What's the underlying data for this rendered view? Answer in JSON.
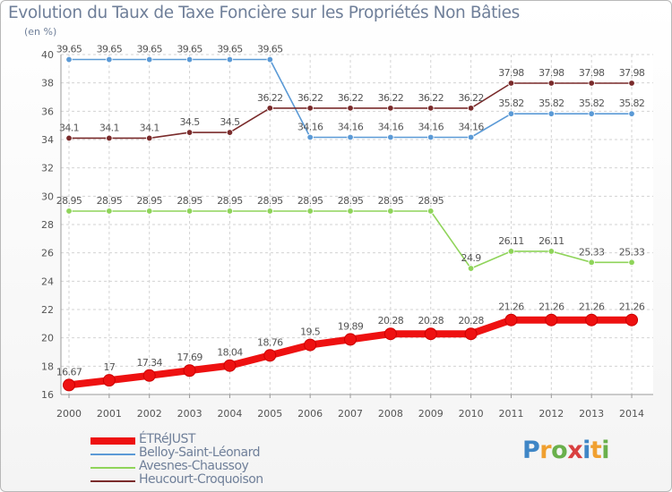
{
  "header": {
    "title": "Evolution du Taux de Taxe Foncière sur les Propriétés Non Bâties",
    "unit": "(en %)"
  },
  "brand": {
    "letters": [
      "P",
      "r",
      "o",
      "x",
      "i",
      "t",
      "i"
    ],
    "colors": [
      "#3f86c6",
      "#f0a030",
      "#6ab04c",
      "#d94040",
      "#3f86c6",
      "#f0a030",
      "#6ab04c"
    ]
  },
  "chart_data": {
    "type": "line",
    "title": "Evolution du Taux de Taxe Foncière sur les Propriétés Non Bâties",
    "ylabel": "(en %)",
    "xlabel": "",
    "x": [
      "2000",
      "2001",
      "2002",
      "2003",
      "2004",
      "2005",
      "2006",
      "2007",
      "2008",
      "2009",
      "2010",
      "2011",
      "2012",
      "2013",
      "2014"
    ],
    "ylim": [
      16,
      40
    ],
    "yticks": [
      "16",
      "18",
      "20",
      "22",
      "24",
      "26",
      "28",
      "30",
      "32",
      "34",
      "36",
      "38",
      "40"
    ],
    "grid": true,
    "legend_position": "bottom-left",
    "series": [
      {
        "name": "ÉTRéJUST",
        "color": "#ee1111",
        "bold": true,
        "values": [
          16.67,
          17,
          17.34,
          17.69,
          18.04,
          18.76,
          19.5,
          19.89,
          20.28,
          20.28,
          20.28,
          21.26,
          21.26,
          21.26,
          21.26
        ],
        "labels": [
          "16.67",
          "17",
          "17.34",
          "17.69",
          "18.04",
          "18.76",
          "19.5",
          "19.89",
          "20.28",
          "20.28",
          "20.28",
          "21.26",
          "21.26",
          "21.26",
          "21.26"
        ]
      },
      {
        "name": "Belloy-Saint-Léonard",
        "color": "#5b9ad6",
        "bold": false,
        "values": [
          39.65,
          39.65,
          39.65,
          39.65,
          39.65,
          39.65,
          34.16,
          34.16,
          34.16,
          34.16,
          34.16,
          35.82,
          35.82,
          35.82,
          35.82
        ],
        "labels": [
          "39.65",
          "39.65",
          "39.65",
          "39.65",
          "39.65",
          "39.65",
          "34.16",
          "34.16",
          "34.16",
          "34.16",
          "34.16",
          "35.82",
          "35.82",
          "35.82",
          "35.82"
        ]
      },
      {
        "name": "Avesnes-Chaussoy",
        "color": "#8fd45a",
        "bold": false,
        "values": [
          28.95,
          28.95,
          28.95,
          28.95,
          28.95,
          28.95,
          28.95,
          28.95,
          28.95,
          28.95,
          24.9,
          26.11,
          26.11,
          25.33,
          25.33
        ],
        "labels": [
          "28.95",
          "28.95",
          "28.95",
          "28.95",
          "28.95",
          "28.95",
          "28.95",
          "28.95",
          "28.95",
          "28.95",
          "24.9",
          "26.11",
          "26.11",
          "25.33",
          "25.33"
        ]
      },
      {
        "name": "Heucourt-Croquoison",
        "color": "#7a2b2b",
        "bold": false,
        "values": [
          34.1,
          34.1,
          34.1,
          34.5,
          34.5,
          36.22,
          36.22,
          36.22,
          36.22,
          36.22,
          36.22,
          37.98,
          37.98,
          37.98,
          37.98
        ],
        "labels": [
          "34.1",
          "34.1",
          "34.1",
          "34.5",
          "34.5",
          "36.22",
          "36.22",
          "36.22",
          "36.22",
          "36.22",
          "36.22",
          "37.98",
          "37.98",
          "37.98",
          "37.98"
        ]
      }
    ]
  }
}
